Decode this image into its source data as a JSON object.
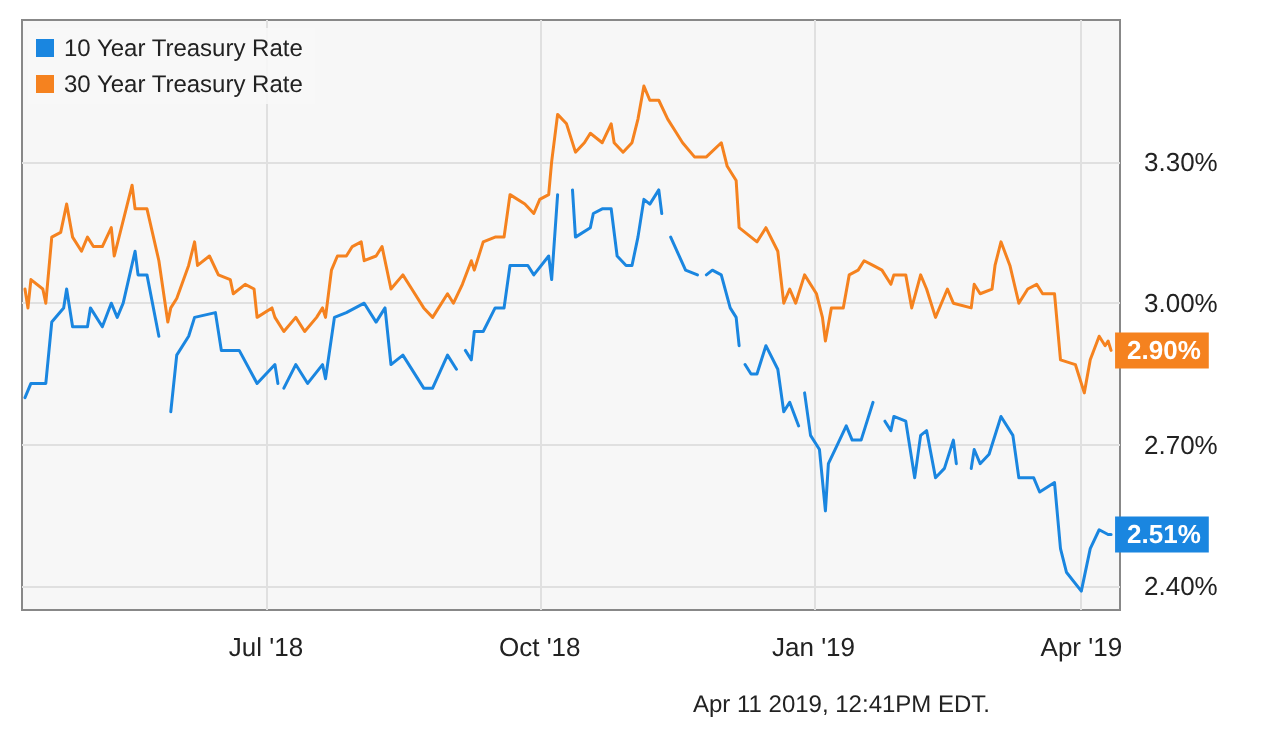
{
  "chart_data": {
    "type": "line",
    "annotations": [
      "Apr 11 2019, 12:41PM EDT."
    ],
    "xlim": [
      "2018-04-10",
      "2019-04-14"
    ],
    "xticks": [
      {
        "value": "2018-07-01",
        "label": "Jul '18"
      },
      {
        "value": "2018-10-01",
        "label": "Oct '18"
      },
      {
        "value": "2019-01-01",
        "label": "Jan '19"
      },
      {
        "value": "2019-04-01",
        "label": "Apr '19"
      }
    ],
    "ylim": [
      2.35,
      3.6
    ],
    "yticks": [
      {
        "value": 2.4,
        "label": "2.40%"
      },
      {
        "value": 2.7,
        "label": "2.70%"
      },
      {
        "value": 3.0,
        "label": "3.00%"
      },
      {
        "value": 3.3,
        "label": "3.30%"
      }
    ],
    "grid": true,
    "legend": "top left",
    "marker": "none",
    "line_style": "solid",
    "series": [
      {
        "name": "10 Year Treasury Rate",
        "color": "#1a86e0",
        "x": [
          "2018-04-11",
          "2018-04-13",
          "2018-04-18",
          "2018-04-20",
          "2018-04-24",
          "2018-04-25",
          "2018-04-27",
          "2018-05-02",
          "2018-05-03",
          "2018-05-07",
          "2018-05-10",
          "2018-05-12",
          "2018-05-14",
          "2018-05-18",
          "2018-05-19",
          "2018-05-22",
          "2018-05-26",
          "2018-05-28",
          "2018-05-30",
          "2018-06-01",
          "2018-06-05",
          "2018-06-07",
          "2018-06-14",
          "2018-06-16",
          "2018-06-22",
          "2018-06-28",
          "2018-07-04",
          "2018-07-05",
          "2018-07-06",
          "2018-07-07",
          "2018-07-11",
          "2018-07-15",
          "2018-07-20",
          "2018-07-21",
          "2018-07-24",
          "2018-07-28",
          "2018-08-03",
          "2018-08-07",
          "2018-08-10",
          "2018-08-12",
          "2018-08-16",
          "2018-08-23",
          "2018-08-26",
          "2018-08-31",
          "2018-09-03",
          "2018-09-05",
          "2018-09-06",
          "2018-09-08",
          "2018-09-09",
          "2018-09-12",
          "2018-09-16",
          "2018-09-19",
          "2018-09-21",
          "2018-09-27",
          "2018-09-29",
          "2018-10-04",
          "2018-10-05",
          "2018-10-07",
          "2018-10-10",
          "2018-10-12",
          "2018-10-13",
          "2018-10-18",
          "2018-10-19",
          "2018-10-22",
          "2018-10-25",
          "2018-10-27",
          "2018-10-30",
          "2018-11-01",
          "2018-11-03",
          "2018-11-05",
          "2018-11-07",
          "2018-11-10",
          "2018-11-11",
          "2018-11-13",
          "2018-11-14",
          "2018-11-19",
          "2018-11-23",
          "2018-11-24",
          "2018-11-26",
          "2018-11-28",
          "2018-12-01",
          "2018-12-04",
          "2018-12-06",
          "2018-12-07",
          "2018-12-08",
          "2018-12-09",
          "2018-12-11",
          "2018-12-13",
          "2018-12-16",
          "2018-12-20",
          "2018-12-22",
          "2018-12-24",
          "2018-12-27",
          "2018-12-28",
          "2018-12-29",
          "2018-12-31",
          "2019-01-03",
          "2019-01-05",
          "2019-01-06",
          "2019-01-09",
          "2019-01-12",
          "2019-01-14",
          "2019-01-17",
          "2019-01-21",
          "2019-01-23",
          "2019-01-25",
          "2019-01-27",
          "2019-01-28",
          "2019-02-01",
          "2019-02-04",
          "2019-02-06",
          "2019-02-08",
          "2019-02-11",
          "2019-02-14",
          "2019-02-17",
          "2019-02-18",
          "2019-02-21",
          "2019-02-23",
          "2019-02-24",
          "2019-02-26",
          "2019-03-01",
          "2019-03-05",
          "2019-03-09",
          "2019-03-11",
          "2019-03-16",
          "2019-03-18",
          "2019-03-23",
          "2019-03-25",
          "2019-03-27",
          "2019-04-01",
          "2019-04-04",
          "2019-04-07",
          "2019-04-10",
          "2019-04-11"
        ],
        "values": [
          2.8,
          2.83,
          2.83,
          2.96,
          2.99,
          3.03,
          2.95,
          2.95,
          2.99,
          2.95,
          3.0,
          2.97,
          3.0,
          3.11,
          3.06,
          3.06,
          2.93,
          null,
          2.77,
          2.89,
          2.93,
          2.97,
          2.98,
          2.9,
          2.9,
          2.83,
          2.87,
          2.83,
          null,
          2.82,
          2.87,
          2.83,
          2.87,
          2.84,
          2.97,
          2.98,
          3.0,
          2.96,
          2.99,
          2.87,
          2.89,
          2.82,
          2.82,
          2.89,
          2.86,
          null,
          2.9,
          2.88,
          2.94,
          2.94,
          2.99,
          2.99,
          3.08,
          3.08,
          3.06,
          3.1,
          3.05,
          3.23,
          null,
          3.24,
          3.14,
          3.16,
          3.19,
          3.2,
          3.2,
          3.1,
          3.08,
          3.08,
          3.14,
          3.22,
          3.21,
          3.24,
          3.19,
          null,
          3.14,
          3.07,
          3.06,
          null,
          3.06,
          3.07,
          3.06,
          2.99,
          2.97,
          2.91,
          null,
          2.87,
          2.85,
          2.85,
          2.91,
          2.86,
          2.77,
          2.79,
          2.74,
          null,
          2.81,
          2.72,
          2.69,
          2.56,
          2.66,
          2.7,
          2.74,
          2.71,
          2.71,
          2.79,
          null,
          2.75,
          2.73,
          2.76,
          2.75,
          2.63,
          2.72,
          2.73,
          2.63,
          2.65,
          2.71,
          2.66,
          null,
          2.65,
          2.69,
          2.66,
          2.68,
          2.76,
          2.72,
          2.63,
          2.63,
          2.6,
          2.62,
          2.48,
          2.43,
          2.39,
          2.48,
          2.52,
          2.51,
          2.51
        ],
        "value_labels": [
          null,
          null,
          null,
          null,
          null,
          null,
          null,
          null,
          null,
          null,
          null,
          null,
          null,
          null,
          null,
          null,
          null,
          null,
          null,
          null,
          null,
          null,
          null,
          null,
          null,
          null,
          null,
          null,
          null,
          null,
          null,
          null,
          null,
          null,
          null,
          null,
          null,
          null,
          null,
          null,
          null,
          null,
          null,
          null,
          null,
          null,
          null,
          null,
          null,
          null,
          null,
          null,
          null,
          null,
          null,
          null,
          null,
          null,
          null,
          null,
          null,
          null,
          null,
          null,
          null,
          null,
          null,
          null,
          null,
          null,
          null,
          null,
          null,
          null,
          null,
          null,
          null,
          null,
          null,
          null,
          null,
          null,
          null,
          null,
          null,
          null,
          null,
          null,
          null,
          null,
          null,
          null,
          null,
          null,
          null,
          null,
          null,
          null,
          null,
          null,
          null,
          null,
          null,
          null,
          null,
          null,
          null,
          null,
          null,
          null,
          null,
          null,
          null,
          null,
          null,
          null,
          null,
          null,
          null,
          null,
          null,
          null,
          null,
          null,
          null,
          null,
          null,
          null,
          null,
          null,
          null,
          null,
          null,
          "2.51%"
        ]
      },
      {
        "name": "30 Year Treasury Rate",
        "color": "#f5821f",
        "x": [
          "2018-04-11",
          "2018-04-12",
          "2018-04-13",
          "2018-04-17",
          "2018-04-18",
          "2018-04-20",
          "2018-04-23",
          "2018-04-25",
          "2018-04-27",
          "2018-04-30",
          "2018-05-02",
          "2018-05-04",
          "2018-05-07",
          "2018-05-10",
          "2018-05-11",
          "2018-05-15",
          "2018-05-17",
          "2018-05-18",
          "2018-05-22",
          "2018-05-26",
          "2018-05-29",
          "2018-05-30",
          "2018-06-01",
          "2018-06-05",
          "2018-06-07",
          "2018-06-08",
          "2018-06-12",
          "2018-06-15",
          "2018-06-19",
          "2018-06-20",
          "2018-06-24",
          "2018-06-27",
          "2018-06-28",
          "2018-07-03",
          "2018-07-04",
          "2018-07-07",
          "2018-07-11",
          "2018-07-14",
          "2018-07-18",
          "2018-07-20",
          "2018-07-21",
          "2018-07-23",
          "2018-07-25",
          "2018-07-28",
          "2018-07-30",
          "2018-08-02",
          "2018-08-03",
          "2018-08-07",
          "2018-08-09",
          "2018-08-12",
          "2018-08-16",
          "2018-08-19",
          "2018-08-23",
          "2018-08-26",
          "2018-08-31",
          "2018-09-02",
          "2018-09-05",
          "2018-09-08",
          "2018-09-09",
          "2018-09-12",
          "2018-09-16",
          "2018-09-19",
          "2018-09-21",
          "2018-09-26",
          "2018-09-29",
          "2018-10-01",
          "2018-10-04",
          "2018-10-05",
          "2018-10-07",
          "2018-10-10",
          "2018-10-13",
          "2018-10-16",
          "2018-10-18",
          "2018-10-22",
          "2018-10-25",
          "2018-10-26",
          "2018-10-29",
          "2018-11-01",
          "2018-11-03",
          "2018-11-05",
          "2018-11-07",
          "2018-11-10",
          "2018-11-13",
          "2018-11-16",
          "2018-11-18",
          "2018-11-22",
          "2018-11-26",
          "2018-12-01",
          "2018-12-03",
          "2018-12-06",
          "2018-12-07",
          "2018-12-13",
          "2018-12-16",
          "2018-12-20",
          "2018-12-22",
          "2018-12-24",
          "2018-12-26",
          "2018-12-29",
          "2019-01-02",
          "2019-01-04",
          "2019-01-05",
          "2019-01-07",
          "2019-01-11",
          "2019-01-13",
          "2019-01-16",
          "2019-01-18",
          "2019-01-21",
          "2019-01-24",
          "2019-01-27",
          "2019-01-28",
          "2019-02-01",
          "2019-02-03",
          "2019-02-06",
          "2019-02-08",
          "2019-02-11",
          "2019-02-15",
          "2019-02-17",
          "2019-02-23",
          "2019-02-24",
          "2019-02-26",
          "2019-03-02",
          "2019-03-03",
          "2019-03-05",
          "2019-03-08",
          "2019-03-11",
          "2019-03-14",
          "2019-03-17",
          "2019-03-19",
          "2019-03-23",
          "2019-03-25",
          "2019-03-30",
          "2019-04-02",
          "2019-04-04",
          "2019-04-07",
          "2019-04-09",
          "2019-04-10",
          "2019-04-11"
        ],
        "values": [
          3.03,
          2.99,
          3.05,
          3.03,
          3.0,
          3.14,
          3.15,
          3.21,
          3.14,
          3.11,
          3.14,
          3.12,
          3.12,
          3.16,
          3.1,
          3.2,
          3.25,
          3.2,
          3.2,
          3.09,
          2.96,
          2.99,
          3.01,
          3.08,
          3.13,
          3.08,
          3.1,
          3.06,
          3.05,
          3.02,
          3.04,
          3.03,
          2.97,
          2.99,
          2.97,
          2.94,
          2.97,
          2.94,
          2.97,
          2.99,
          2.97,
          3.07,
          3.1,
          3.1,
          3.12,
          3.13,
          3.09,
          3.1,
          3.12,
          3.03,
          3.06,
          3.03,
          2.99,
          2.97,
          3.02,
          3.0,
          3.04,
          3.09,
          3.07,
          3.13,
          3.14,
          3.14,
          3.23,
          3.21,
          3.19,
          3.22,
          3.23,
          3.3,
          3.4,
          3.38,
          3.32,
          3.34,
          3.36,
          3.34,
          3.38,
          3.34,
          3.32,
          3.34,
          3.39,
          3.46,
          3.43,
          3.43,
          3.39,
          3.36,
          3.34,
          3.31,
          3.31,
          3.34,
          3.29,
          3.26,
          3.16,
          3.13,
          3.16,
          3.11,
          3.0,
          3.03,
          3.0,
          3.06,
          3.02,
          2.97,
          2.92,
          2.99,
          2.99,
          3.06,
          3.07,
          3.09,
          3.08,
          3.07,
          3.04,
          3.06,
          3.06,
          2.99,
          3.06,
          3.03,
          2.97,
          3.03,
          3.0,
          2.99,
          3.04,
          3.02,
          3.03,
          3.08,
          3.13,
          3.08,
          3.0,
          3.03,
          3.04,
          3.02,
          3.02,
          2.88,
          2.87,
          2.81,
          2.88,
          2.93,
          2.91,
          2.92,
          2.9
        ],
        "value_labels": [
          null,
          null,
          null,
          null,
          null,
          null,
          null,
          null,
          null,
          null,
          null,
          null,
          null,
          null,
          null,
          null,
          null,
          null,
          null,
          null,
          null,
          null,
          null,
          null,
          null,
          null,
          null,
          null,
          null,
          null,
          null,
          null,
          null,
          null,
          null,
          null,
          null,
          null,
          null,
          null,
          null,
          null,
          null,
          null,
          null,
          null,
          null,
          null,
          null,
          null,
          null,
          null,
          null,
          null,
          null,
          null,
          null,
          null,
          null,
          null,
          null,
          null,
          null,
          null,
          null,
          null,
          null,
          null,
          null,
          null,
          null,
          null,
          null,
          null,
          null,
          null,
          null,
          null,
          null,
          null,
          null,
          null,
          null,
          null,
          null,
          null,
          null,
          null,
          null,
          null,
          null,
          null,
          null,
          null,
          null,
          null,
          null,
          null,
          null,
          null,
          null,
          null,
          null,
          null,
          null,
          null,
          null,
          null,
          null,
          null,
          null,
          null,
          null,
          null,
          null,
          null,
          null,
          null,
          null,
          null,
          null,
          null,
          null,
          null,
          null,
          null,
          null,
          null,
          null,
          null,
          null,
          null,
          null,
          null,
          null,
          null,
          "2.90%"
        ]
      }
    ]
  }
}
